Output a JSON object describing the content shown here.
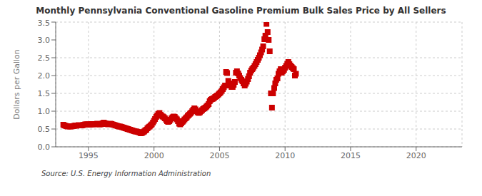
{
  "chart_data": {
    "type": "scatter",
    "title": "Monthly Pennsylvania Conventional Gasoline Premium Bulk Sales Price by All Sellers",
    "y_label": "Dollars per Gallon",
    "annotations": [
      "Source: U.S. Energy Information Administration"
    ],
    "color": "#cc0000",
    "marker": "square",
    "grid": true,
    "xlim": [
      1992.5,
      2023.5
    ],
    "ylim": [
      0.0,
      3.5
    ],
    "xticks": [
      1995,
      2000,
      2005,
      2010,
      2015,
      2020
    ],
    "yticks": [
      {
        "value": 0.0,
        "label": "0.0"
      },
      0.5,
      {
        "value": 1.0,
        "label": "1.0"
      },
      1.5,
      {
        "value": 2.0,
        "label": "2.0"
      },
      2.5,
      {
        "value": 3.0,
        "label": "3.0"
      },
      3.5
    ],
    "x": [
      1993.08,
      1993.17,
      1993.25,
      1993.33,
      1993.42,
      1993.5,
      1993.58,
      1993.67,
      1993.75,
      1993.83,
      1993.92,
      1994.0,
      1994.08,
      1994.17,
      1994.25,
      1994.33,
      1994.42,
      1994.5,
      1994.58,
      1994.67,
      1994.75,
      1994.83,
      1994.92,
      1995.0,
      1995.08,
      1995.17,
      1995.25,
      1995.33,
      1995.42,
      1995.5,
      1995.58,
      1995.67,
      1995.75,
      1995.83,
      1995.92,
      1996.0,
      1996.08,
      1996.17,
      1996.25,
      1996.33,
      1996.42,
      1996.5,
      1996.58,
      1996.67,
      1996.75,
      1996.83,
      1996.92,
      1997.0,
      1997.08,
      1997.17,
      1997.25,
      1997.33,
      1997.42,
      1997.5,
      1997.58,
      1997.67,
      1997.75,
      1997.83,
      1997.92,
      1998.0,
      1998.08,
      1998.17,
      1998.25,
      1998.33,
      1998.42,
      1998.5,
      1998.58,
      1998.67,
      1998.75,
      1998.83,
      1998.92,
      1999.0,
      1999.08,
      1999.17,
      1999.25,
      1999.33,
      1999.42,
      1999.5,
      1999.58,
      1999.67,
      1999.75,
      1999.83,
      1999.92,
      2000.0,
      2000.08,
      2000.17,
      2000.25,
      2000.33,
      2000.42,
      2000.5,
      2000.58,
      2000.67,
      2000.75,
      2000.83,
      2000.92,
      2001.0,
      2001.08,
      2001.17,
      2001.25,
      2001.33,
      2001.42,
      2001.5,
      2001.58,
      2001.67,
      2001.75,
      2001.83,
      2001.92,
      2002.0,
      2002.08,
      2002.17,
      2002.25,
      2002.33,
      2002.42,
      2002.5,
      2002.58,
      2002.67,
      2002.75,
      2002.83,
      2002.92,
      2003.0,
      2003.08,
      2003.17,
      2003.25,
      2003.33,
      2003.42,
      2003.5,
      2003.58,
      2003.67,
      2003.75,
      2003.83,
      2003.92,
      2004.0,
      2004.08,
      2004.17,
      2004.25,
      2004.33,
      2004.42,
      2004.5,
      2004.58,
      2004.67,
      2004.75,
      2004.83,
      2004.92,
      2005.0,
      2005.08,
      2005.17,
      2005.25,
      2005.33,
      2005.42,
      2005.5,
      2005.58,
      2005.67,
      2005.75,
      2005.83,
      2005.92,
      2006.0,
      2006.08,
      2006.17,
      2006.25,
      2006.33,
      2006.42,
      2006.5,
      2006.58,
      2006.67,
      2006.75,
      2006.83,
      2006.92,
      2007.0,
      2007.08,
      2007.17,
      2007.25,
      2007.33,
      2007.42,
      2007.5,
      2007.58,
      2007.67,
      2007.75,
      2007.83,
      2007.92,
      2008.0,
      2008.08,
      2008.17,
      2008.25,
      2008.33,
      2008.42,
      2008.5,
      2008.58,
      2008.67,
      2008.75,
      2008.83,
      2008.92,
      2009.0,
      2009.08,
      2009.17,
      2009.25,
      2009.33,
      2009.42,
      2009.5,
      2009.58,
      2009.67,
      2009.75,
      2009.83,
      2009.92,
      2010.0,
      2010.08,
      2010.17,
      2010.25,
      2010.33,
      2010.42,
      2010.5,
      2010.58,
      2010.67,
      2010.75,
      2010.83
    ],
    "values": [
      0.62,
      0.6,
      0.59,
      0.58,
      0.57,
      0.58,
      0.57,
      0.57,
      0.58,
      0.58,
      0.59,
      0.6,
      0.59,
      0.6,
      0.61,
      0.6,
      0.6,
      0.6,
      0.61,
      0.62,
      0.63,
      0.63,
      0.63,
      0.63,
      0.62,
      0.63,
      0.64,
      0.63,
      0.64,
      0.63,
      0.64,
      0.65,
      0.64,
      0.63,
      0.63,
      0.64,
      0.66,
      0.68,
      0.66,
      0.65,
      0.64,
      0.63,
      0.64,
      0.65,
      0.64,
      0.63,
      0.62,
      0.61,
      0.6,
      0.59,
      0.58,
      0.57,
      0.57,
      0.56,
      0.55,
      0.54,
      0.53,
      0.52,
      0.51,
      0.5,
      0.49,
      0.48,
      0.47,
      0.46,
      0.45,
      0.44,
      0.43,
      0.43,
      0.42,
      0.41,
      0.4,
      0.38,
      0.39,
      0.41,
      0.43,
      0.46,
      0.48,
      0.52,
      0.55,
      0.57,
      0.6,
      0.63,
      0.68,
      0.73,
      0.78,
      0.84,
      0.88,
      0.92,
      0.95,
      0.9,
      0.87,
      0.85,
      0.83,
      0.8,
      0.76,
      0.72,
      0.7,
      0.72,
      0.76,
      0.8,
      0.83,
      0.85,
      0.84,
      0.8,
      0.77,
      0.72,
      0.65,
      0.63,
      0.66,
      0.7,
      0.73,
      0.77,
      0.8,
      0.83,
      0.87,
      0.9,
      0.93,
      0.96,
      1.0,
      1.04,
      1.08,
      1.05,
      1.0,
      0.97,
      0.95,
      0.97,
      1.0,
      1.03,
      1.06,
      1.08,
      1.1,
      1.13,
      1.16,
      1.2,
      1.28,
      1.32,
      1.34,
      1.35,
      1.37,
      1.4,
      1.42,
      1.44,
      1.47,
      1.5,
      1.53,
      1.57,
      1.62,
      1.67,
      1.72,
      2.1,
      2.07,
      1.85,
      1.78,
      1.72,
      1.68,
      1.68,
      1.74,
      1.82,
      2.08,
      2.12,
      2.06,
      2.0,
      1.93,
      1.88,
      1.84,
      1.78,
      1.72,
      1.77,
      1.83,
      1.9,
      1.98,
      2.08,
      2.14,
      2.18,
      2.22,
      2.27,
      2.32,
      2.38,
      2.44,
      2.5,
      2.57,
      2.65,
      2.73,
      2.82,
      3.02,
      3.12,
      3.45,
      3.22,
      3.0,
      2.68,
      1.5,
      1.1,
      1.5,
      1.65,
      1.78,
      1.88,
      1.92,
      2.05,
      2.12,
      2.18,
      2.08,
      2.12,
      2.16,
      2.22,
      2.27,
      2.33,
      2.38,
      2.32,
      2.28,
      2.24,
      2.21,
      2.18,
      2.0,
      2.05
    ]
  }
}
